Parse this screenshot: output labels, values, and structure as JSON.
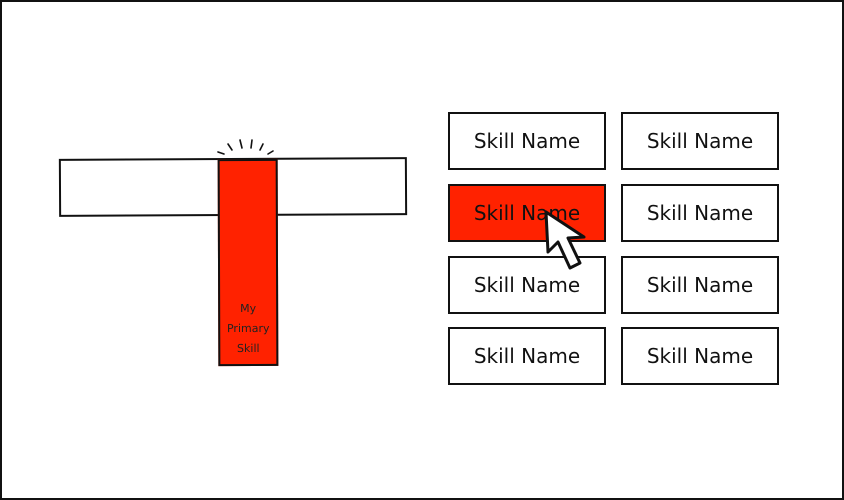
{
  "t_diagram": {
    "primary_skill_lines": [
      "My",
      "Primary",
      "Skill"
    ],
    "accent_color": "#ff2200"
  },
  "skills": [
    {
      "label": "Skill Name",
      "selected": false
    },
    {
      "label": "Skill Name",
      "selected": false
    },
    {
      "label": "Skill Name",
      "selected": true
    },
    {
      "label": "Skill Name",
      "selected": false
    },
    {
      "label": "Skill Name",
      "selected": false
    },
    {
      "label": "Skill Name",
      "selected": false
    },
    {
      "label": "Skill Name",
      "selected": false
    },
    {
      "label": "Skill Name",
      "selected": false
    }
  ],
  "cursor_icon": "pointer-arrow-icon"
}
